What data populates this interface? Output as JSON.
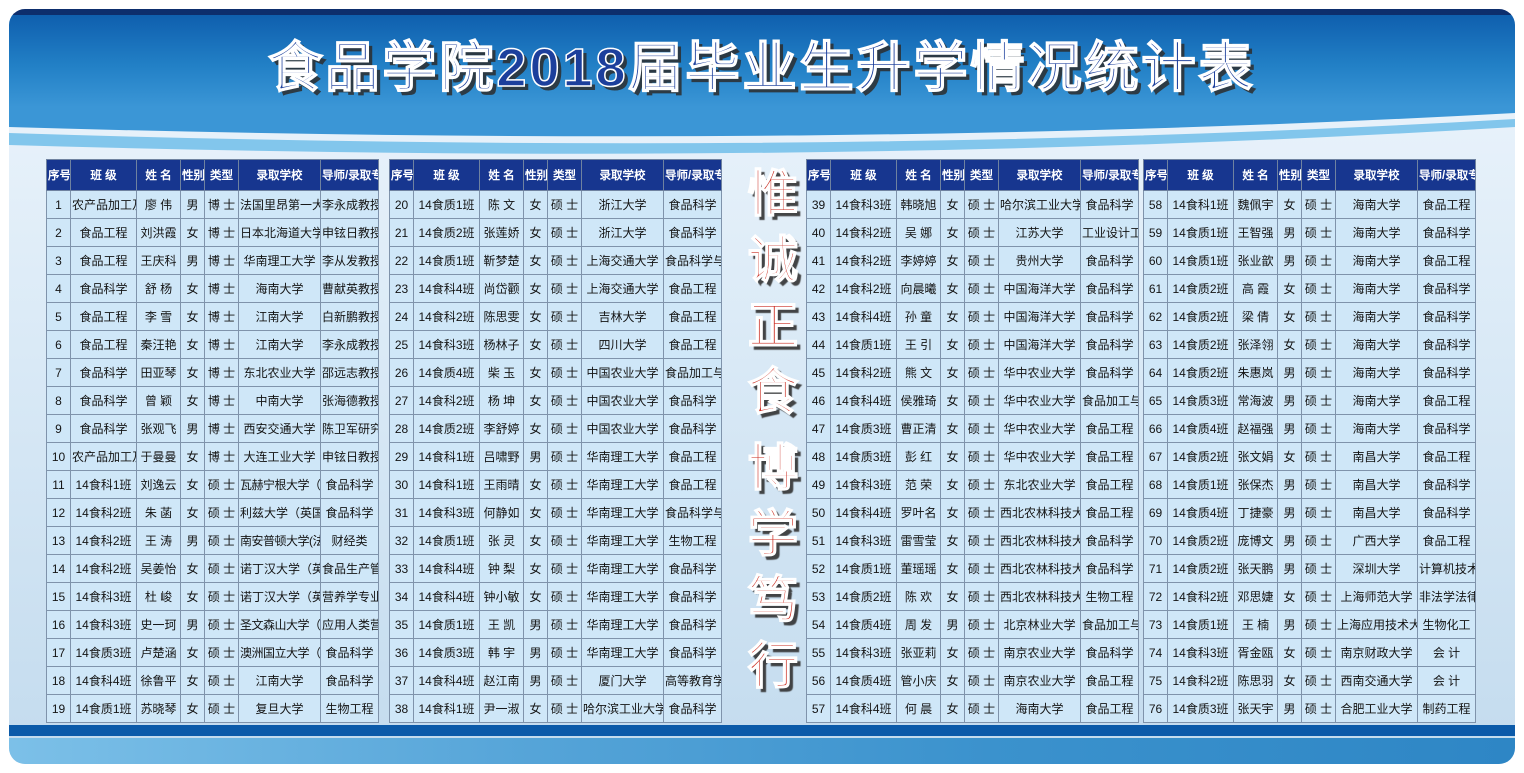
{
  "page": {
    "title": "食品学院2018届毕业生升学情况统计表"
  },
  "motto": {
    "line1": "惟诚正食",
    "line2": "博学笃行"
  },
  "colors": {
    "banner_blue": "#1a6ab5",
    "banner_edge_navy": "#0d2e6d",
    "title_text_blue": "#1c3f9c",
    "table_header_blue": "#17368f",
    "cell_light_blue": "#cfe7f8",
    "motto_red": "#c9281c",
    "bottom_stripe_blue": "#0b5aa9"
  },
  "table": {
    "columns": [
      "序号",
      "班 级",
      "姓 名",
      "性别",
      "类型",
      "录取学校",
      "导师/录取专业"
    ]
  },
  "tables": [
    {
      "rows": [
        [
          "1",
          "农产品加工及贮藏",
          "廖 伟",
          "男",
          "博 士",
          "法国里昂第一大学",
          "李永成教授"
        ],
        [
          "2",
          "食品工程",
          "刘洪霞",
          "女",
          "博 士",
          "日本北海道大学",
          "申铉日教授"
        ],
        [
          "3",
          "食品工程",
          "王庆科",
          "男",
          "博 士",
          "华南理工大学",
          "李从发教授"
        ],
        [
          "4",
          "食品科学",
          "舒 杨",
          "女",
          "博 士",
          "海南大学",
          "曹献英教授"
        ],
        [
          "5",
          "食品工程",
          "李 雪",
          "女",
          "博 士",
          "江南大学",
          "白新鹏教授"
        ],
        [
          "6",
          "食品工程",
          "秦汪艳",
          "女",
          "博 士",
          "江南大学",
          "李永成教授"
        ],
        [
          "7",
          "食品科学",
          "田亚琴",
          "女",
          "博 士",
          "东北农业大学",
          "邵远志教授"
        ],
        [
          "8",
          "食品科学",
          "曾 颖",
          "女",
          "博 士",
          "中南大学",
          "张海德教授"
        ],
        [
          "9",
          "食品科学",
          "张观飞",
          "男",
          "博 士",
          "西安交通大学",
          "陈卫军研究员"
        ],
        [
          "10",
          "农产品加工及贮藏",
          "于曼曼",
          "女",
          "博 士",
          "大连工业大学",
          "申铉日教授"
        ],
        [
          "11",
          "14食科1班",
          "刘逸云",
          "女",
          "硕 士",
          "瓦赫宁根大学（荷兰）",
          "食品科学"
        ],
        [
          "12",
          "14食科2班",
          "朱 菡",
          "女",
          "硕 士",
          "利兹大学（英国）",
          "食品科学"
        ],
        [
          "13",
          "14食科2班",
          "王 涛",
          "男",
          "硕 士",
          "南安普顿大学(法国)",
          "财经类"
        ],
        [
          "14",
          "14食科2班",
          "吴姜怡",
          "女",
          "硕 士",
          "诺丁汉大学（英国）",
          "食品生产管理"
        ],
        [
          "15",
          "14食科3班",
          "杜 峻",
          "女",
          "硕 士",
          "诺丁汉大学（英国）",
          "营养学专业"
        ],
        [
          "16",
          "14食科3班",
          "史一珂",
          "男",
          "硕 士",
          "圣文森山大学（加拿大）",
          "应用人类营养学"
        ],
        [
          "17",
          "14食质3班",
          "卢楚涵",
          "女",
          "硕 士",
          "澳洲国立大学（澳大利亚）",
          "食品科学"
        ],
        [
          "18",
          "14食科4班",
          "徐鲁平",
          "女",
          "硕 士",
          "江南大学",
          "食品科学"
        ],
        [
          "19",
          "14食质1班",
          "苏晓琴",
          "女",
          "硕 士",
          "复旦大学",
          "生物工程"
        ]
      ]
    },
    {
      "rows": [
        [
          "20",
          "14食质1班",
          "陈 文",
          "女",
          "硕 士",
          "浙江大学",
          "食品科学"
        ],
        [
          "21",
          "14食质2班",
          "张莲娇",
          "女",
          "硕 士",
          "浙江大学",
          "食品科学"
        ],
        [
          "22",
          "14食质1班",
          "靳梦楚",
          "女",
          "硕 士",
          "上海交通大学",
          "食品科学与工程"
        ],
        [
          "23",
          "14食科4班",
          "尚岱颧",
          "女",
          "硕 士",
          "上海交通大学",
          "食品工程"
        ],
        [
          "24",
          "14食科2班",
          "陈思雯",
          "女",
          "硕 士",
          "吉林大学",
          "食品工程"
        ],
        [
          "25",
          "14食科3班",
          "杨林子",
          "女",
          "硕 士",
          "四川大学",
          "食品工程"
        ],
        [
          "26",
          "14食质4班",
          "柴 玉",
          "女",
          "硕 士",
          "中国农业大学",
          "食品加工与安全"
        ],
        [
          "27",
          "14食科2班",
          "杨 坤",
          "女",
          "硕 士",
          "中国农业大学",
          "食品科学"
        ],
        [
          "28",
          "14食质2班",
          "李舒婷",
          "女",
          "硕 士",
          "中国农业大学",
          "食品科学"
        ],
        [
          "29",
          "14食科1班",
          "吕啸野",
          "男",
          "硕 士",
          "华南理工大学",
          "食品工程"
        ],
        [
          "30",
          "14食科1班",
          "王雨晴",
          "女",
          "硕 士",
          "华南理工大学",
          "食品工程"
        ],
        [
          "31",
          "14食科3班",
          "何静如",
          "女",
          "硕 士",
          "华南理工大学",
          "食品科学与工程"
        ],
        [
          "32",
          "14食质1班",
          "张 灵",
          "女",
          "硕 士",
          "华南理工大学",
          "生物工程"
        ],
        [
          "33",
          "14食科4班",
          "钟 梨",
          "女",
          "硕 士",
          "华南理工大学",
          "食品科学"
        ],
        [
          "34",
          "14食科4班",
          "钟小敏",
          "女",
          "硕 士",
          "华南理工大学",
          "食品科学"
        ],
        [
          "35",
          "14食质1班",
          "王 凯",
          "男",
          "硕 士",
          "华南理工大学",
          "食品科学"
        ],
        [
          "36",
          "14食质3班",
          "韩 宇",
          "男",
          "硕 士",
          "华南理工大学",
          "食品科学"
        ],
        [
          "37",
          "14食科4班",
          "赵江南",
          "男",
          "硕 士",
          "厦门大学",
          "高等教育学"
        ],
        [
          "38",
          "14食科1班",
          "尹一淑",
          "女",
          "硕 士",
          "哈尔滨工业大学",
          "食品科学"
        ]
      ]
    },
    {
      "rows": [
        [
          "39",
          "14食科3班",
          "韩晓旭",
          "女",
          "硕 士",
          "哈尔滨工业大学",
          "食品科学"
        ],
        [
          "40",
          "14食科2班",
          "吴 娜",
          "女",
          "硕 士",
          "江苏大学",
          "工业设计工程"
        ],
        [
          "41",
          "14食科2班",
          "李婷婷",
          "女",
          "硕 士",
          "贵州大学",
          "食品科学"
        ],
        [
          "42",
          "14食科2班",
          "向晨曦",
          "女",
          "硕 士",
          "中国海洋大学",
          "食品科学"
        ],
        [
          "43",
          "14食科4班",
          "孙 童",
          "女",
          "硕 士",
          "中国海洋大学",
          "食品科学"
        ],
        [
          "44",
          "14食质1班",
          "王 引",
          "女",
          "硕 士",
          "中国海洋大学",
          "食品科学"
        ],
        [
          "45",
          "14食科2班",
          "熊 文",
          "女",
          "硕 士",
          "华中农业大学",
          "食品科学"
        ],
        [
          "46",
          "14食科4班",
          "侯雅琦",
          "女",
          "硕 士",
          "华中农业大学",
          "食品加工与安全"
        ],
        [
          "47",
          "14食质3班",
          "曹正清",
          "女",
          "硕 士",
          "华中农业大学",
          "食品工程"
        ],
        [
          "48",
          "14食质3班",
          "彭 红",
          "女",
          "硕 士",
          "华中农业大学",
          "食品工程"
        ],
        [
          "49",
          "14食科3班",
          "范 荣",
          "女",
          "硕 士",
          "东北农业大学",
          "食品工程"
        ],
        [
          "50",
          "14食科4班",
          "罗叶名",
          "女",
          "硕 士",
          "西北农林科技大学",
          "食品工程"
        ],
        [
          "51",
          "14食科3班",
          "雷雪莹",
          "女",
          "硕 士",
          "西北农林科技大学",
          "食品科学"
        ],
        [
          "52",
          "14食质1班",
          "董瑶瑶",
          "女",
          "硕 士",
          "西北农林科技大学",
          "食品科学"
        ],
        [
          "53",
          "14食质2班",
          "陈 欢",
          "女",
          "硕 士",
          "西北农林科技大学",
          "生物工程"
        ],
        [
          "54",
          "14食质4班",
          "周 发",
          "男",
          "硕 士",
          "北京林业大学",
          "食品加工与安全"
        ],
        [
          "55",
          "14食科3班",
          "张亚莉",
          "女",
          "硕 士",
          "南京农业大学",
          "食品科学"
        ],
        [
          "56",
          "14食质4班",
          "管小庆",
          "女",
          "硕 士",
          "南京农业大学",
          "食品工程"
        ],
        [
          "57",
          "14食科4班",
          "何 晨",
          "女",
          "硕 士",
          "海南大学",
          "食品工程"
        ]
      ]
    },
    {
      "rows": [
        [
          "58",
          "14食科1班",
          "魏佩宇",
          "女",
          "硕 士",
          "海南大学",
          "食品工程"
        ],
        [
          "59",
          "14食质1班",
          "王智强",
          "男",
          "硕 士",
          "海南大学",
          "食品科学"
        ],
        [
          "60",
          "14食质1班",
          "张业歆",
          "男",
          "硕 士",
          "海南大学",
          "食品工程"
        ],
        [
          "61",
          "14食质2班",
          "高 霞",
          "女",
          "硕 士",
          "海南大学",
          "食品科学"
        ],
        [
          "62",
          "14食质2班",
          "梁 倩",
          "女",
          "硕 士",
          "海南大学",
          "食品科学"
        ],
        [
          "63",
          "14食质2班",
          "张泽翎",
          "女",
          "硕 士",
          "海南大学",
          "食品科学"
        ],
        [
          "64",
          "14食质2班",
          "朱惠岚",
          "男",
          "硕 士",
          "海南大学",
          "食品科学"
        ],
        [
          "65",
          "14食质3班",
          "常海波",
          "男",
          "硕 士",
          "海南大学",
          "食品工程"
        ],
        [
          "66",
          "14食质4班",
          "赵福强",
          "男",
          "硕 士",
          "海南大学",
          "食品科学"
        ],
        [
          "67",
          "14食质2班",
          "张文娟",
          "女",
          "硕 士",
          "南昌大学",
          "食品工程"
        ],
        [
          "68",
          "14食质1班",
          "张保杰",
          "男",
          "硕 士",
          "南昌大学",
          "食品科学"
        ],
        [
          "69",
          "14食质4班",
          "丁捷豪",
          "男",
          "硕 士",
          "南昌大学",
          "食品科学"
        ],
        [
          "70",
          "14食质2班",
          "庞博文",
          "男",
          "硕 士",
          "广西大学",
          "食品工程"
        ],
        [
          "71",
          "14食质2班",
          "张天鹏",
          "男",
          "硕 士",
          "深圳大学",
          "计算机技术"
        ],
        [
          "72",
          "14食科2班",
          "邓思婕",
          "女",
          "硕 士",
          "上海师范大学",
          "非法学法律硕士"
        ],
        [
          "73",
          "14食质1班",
          "王 楠",
          "男",
          "硕 士",
          "上海应用技术大学",
          "生物化工"
        ],
        [
          "74",
          "14食科3班",
          "胥金瓯",
          "女",
          "硕 士",
          "南京财政大学",
          "会 计"
        ],
        [
          "75",
          "14食科2班",
          "陈思羽",
          "女",
          "硕 士",
          "西南交通大学",
          "会 计"
        ],
        [
          "76",
          "14食质3班",
          "张天宇",
          "男",
          "硕 士",
          "合肥工业大学",
          "制药工程"
        ]
      ]
    }
  ]
}
